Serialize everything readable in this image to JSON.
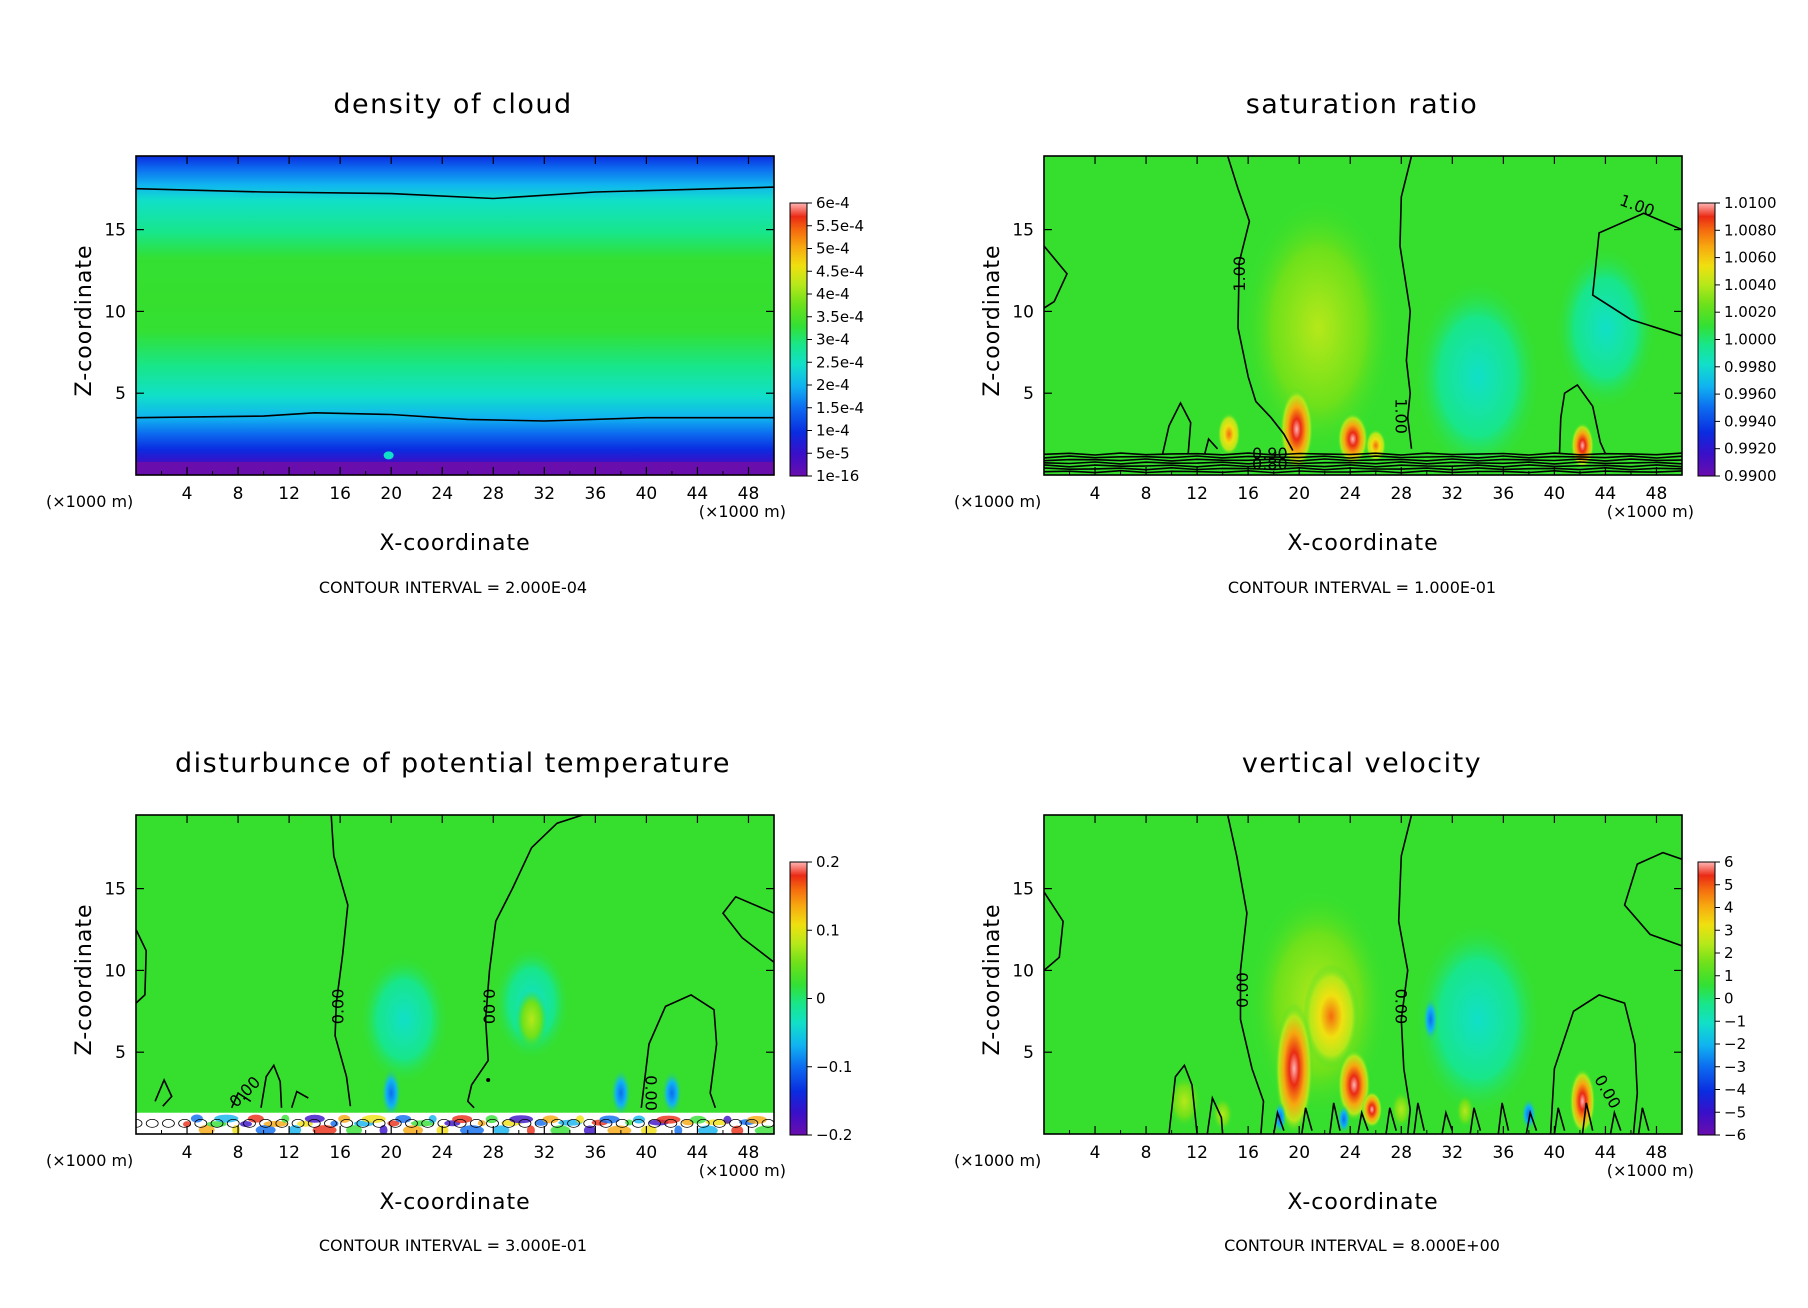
{
  "chart_data": [
    {
      "type": "heatmap",
      "title": "density of cloud",
      "xlabel": "X-coordinate",
      "ylabel": "Z-coordinate",
      "x_unit_left": "(×1000 m)",
      "x_unit_right": "(×1000 m)",
      "xlim": [
        0,
        50
      ],
      "ylim": [
        0,
        19.5
      ],
      "xticks": [
        4,
        8,
        12,
        16,
        20,
        24,
        28,
        32,
        36,
        40,
        44,
        48
      ],
      "yticks": [
        5,
        10,
        15
      ],
      "colorbar_labels": [
        "6e-4",
        "5.5e-4",
        "5e-4",
        "4.5e-4",
        "4e-4",
        "3.5e-4",
        "3e-4",
        "2.5e-4",
        "2e-4",
        "1.5e-4",
        "1e-4",
        "5e-5",
        "1e-16"
      ],
      "contour_interval_text": "CONTOUR INTERVAL = 2.000E-04",
      "contour_labels": [],
      "field": "cloud"
    },
    {
      "type": "heatmap",
      "title": "saturation ratio",
      "xlabel": "X-coordinate",
      "ylabel": "Z-coordinate",
      "x_unit_left": "(×1000 m)",
      "x_unit_right": "(×1000 m)",
      "xlim": [
        0,
        50
      ],
      "ylim": [
        0,
        19.5
      ],
      "xticks": [
        4,
        8,
        12,
        16,
        20,
        24,
        28,
        32,
        36,
        40,
        44,
        48
      ],
      "yticks": [
        5,
        10,
        15
      ],
      "colorbar_labels": [
        "1.0100",
        "1.0080",
        "1.0060",
        "1.0040",
        "1.0020",
        "1.0000",
        "0.9980",
        "0.9960",
        "0.9940",
        "0.9920",
        "0.9900"
      ],
      "contour_interval_text": "CONTOUR INTERVAL = 1.000E-01",
      "contour_labels": [
        {
          "text": "1.00",
          "x": 15.3,
          "y": 12.3,
          "rotate": -90
        },
        {
          "text": "1.00",
          "x": 28.0,
          "y": 3.6,
          "rotate": 90
        },
        {
          "text": "1.00",
          "x": 46.5,
          "y": 16.5,
          "rotate": 20
        },
        {
          "text": "0.80",
          "x": 17.7,
          "y": 0.7,
          "rotate": 0
        },
        {
          "text": "0.90",
          "x": 17.7,
          "y": 1.35,
          "rotate": 0
        }
      ],
      "field": "sat"
    },
    {
      "type": "heatmap",
      "title": "disturbunce of potential temperature",
      "xlabel": "X-coordinate",
      "ylabel": "Z-coordinate",
      "x_unit_left": "(×1000 m)",
      "x_unit_right": "(×1000 m)",
      "xlim": [
        0,
        50
      ],
      "ylim": [
        0,
        19.5
      ],
      "xticks": [
        4,
        8,
        12,
        16,
        20,
        24,
        28,
        32,
        36,
        40,
        44,
        48
      ],
      "yticks": [
        5,
        10,
        15
      ],
      "colorbar_labels": [
        "0.2",
        "0.1",
        "0",
        "−0.1",
        "−0.2"
      ],
      "contour_interval_text": "CONTOUR INTERVAL = 3.000E-01",
      "contour_labels": [
        {
          "text": "0.00",
          "x": 15.8,
          "y": 7.8,
          "rotate": -90
        },
        {
          "text": "0.00",
          "x": 27.7,
          "y": 7.8,
          "rotate": 90
        },
        {
          "text": "0.00",
          "x": 40.4,
          "y": 2.5,
          "rotate": 90
        },
        {
          "text": "0.00",
          "x": 8.5,
          "y": 2.6,
          "rotate": -45
        }
      ],
      "field": "theta"
    },
    {
      "type": "heatmap",
      "title": "vertical velocity",
      "xlabel": "X-coordinate",
      "ylabel": "Z-coordinate",
      "x_unit_left": "(×1000 m)",
      "x_unit_right": "(×1000 m)",
      "xlim": [
        0,
        50
      ],
      "ylim": [
        0,
        19.5
      ],
      "xticks": [
        4,
        8,
        12,
        16,
        20,
        24,
        28,
        32,
        36,
        40,
        44,
        48
      ],
      "yticks": [
        5,
        10,
        15
      ],
      "colorbar_labels": [
        "6",
        "5",
        "4",
        "3",
        "2",
        "1",
        "0",
        "−1",
        "−2",
        "−3",
        "−4",
        "−5",
        "−6"
      ],
      "contour_interval_text": "CONTOUR INTERVAL = 8.000E+00",
      "contour_labels": [
        {
          "text": "0.00",
          "x": 15.5,
          "y": 8.8,
          "rotate": -90
        },
        {
          "text": "0.00",
          "x": 28.0,
          "y": 7.8,
          "rotate": 90
        },
        {
          "text": "0.00",
          "x": 44.2,
          "y": 2.6,
          "rotate": 60
        }
      ],
      "field": "w"
    }
  ],
  "colors": {
    "rainbow": [
      "#6a0dad",
      "#3a0fc8",
      "#0a2ce0",
      "#0c6cf0",
      "#10b4f0",
      "#11e0c8",
      "#18e68a",
      "#33e033",
      "#6ee11a",
      "#b5e81a",
      "#f0e010",
      "#f7a80f",
      "#f56b0f",
      "#ea2a14",
      "#ff6f6f",
      "#ffb6b6"
    ],
    "background_green": "#36df2e"
  }
}
